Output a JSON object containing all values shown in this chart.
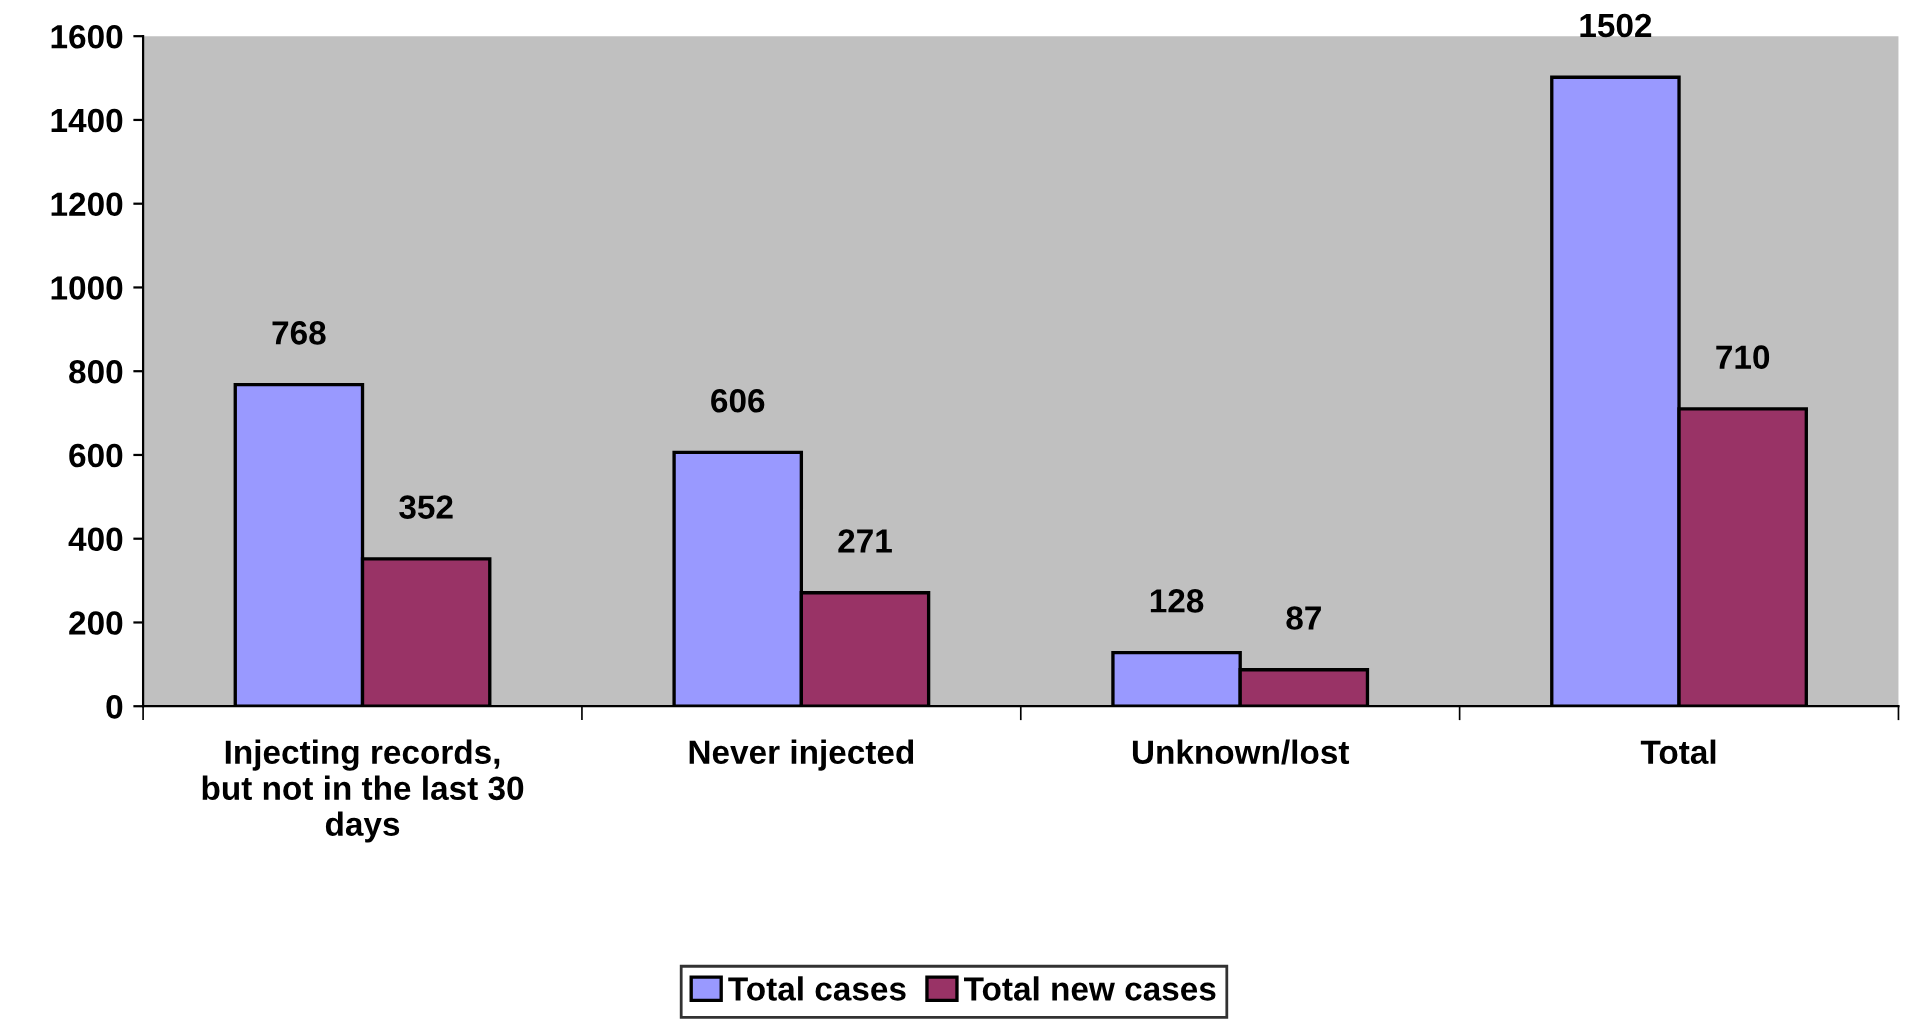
{
  "chart_data": {
    "type": "bar",
    "categories": [
      "Injecting records,\nbut not in the last 30\ndays",
      "Never injected",
      "Unknown/lost",
      "Total"
    ],
    "series": [
      {
        "name": "Total cases",
        "color": "#9999ff",
        "values": [
          768,
          606,
          128,
          1502
        ]
      },
      {
        "name": "Total new cases",
        "color": "#993366",
        "values": [
          352,
          271,
          87,
          710
        ]
      }
    ],
    "ylim": [
      0,
      1600
    ],
    "yticks": [
      0,
      200,
      400,
      600,
      800,
      1000,
      1200,
      1400,
      1600
    ],
    "data_labels": true,
    "grid": false,
    "legend": "bottom"
  }
}
